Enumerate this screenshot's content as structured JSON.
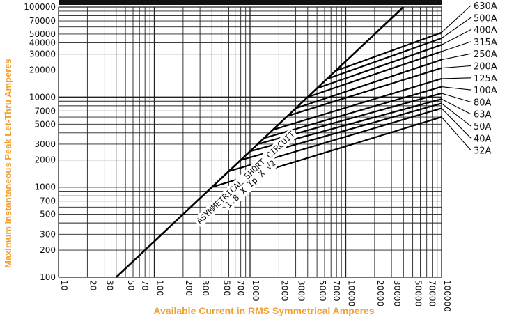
{
  "chart_data": {
    "type": "line",
    "title": "",
    "xlabel": "Available Current in RMS Symmetrical Amperes",
    "ylabel": "Maximum Instantaneous Peak Let-Thru Amperes",
    "xscale": "log",
    "yscale": "log",
    "xlim": [
      10,
      100000
    ],
    "ylim": [
      100,
      100000
    ],
    "grid": true,
    "x_ticks": [
      10,
      20,
      30,
      50,
      70,
      100,
      200,
      300,
      500,
      700,
      1000,
      2000,
      3000,
      5000,
      7000,
      10000,
      20000,
      30000,
      50000,
      70000,
      100000
    ],
    "x_tick_labels": [
      "10",
      "20",
      "30",
      "50",
      "70",
      "100",
      "200",
      "300",
      "500",
      "700",
      "1000",
      "2000",
      "3000",
      "5000",
      "7000",
      "10000",
      "20000",
      "30000",
      "50000",
      "70000",
      "100000"
    ],
    "y_ticks": [
      100,
      200,
      300,
      500,
      700,
      1000,
      2000,
      3000,
      5000,
      7000,
      10000,
      20000,
      30000,
      40000,
      50000,
      70000,
      100000
    ],
    "y_tick_labels": [
      "100",
      "200",
      "300",
      "500",
      "700",
      "1000",
      "2000",
      "3000",
      "5000",
      "7000",
      "10000",
      "20000",
      "30000",
      "40000",
      "50000",
      "70000",
      "100000"
    ],
    "annotation": {
      "line1": "ASYMMETRICAL SHORT CIRCUIT",
      "line2": "1.8 X Ip X √2"
    },
    "asymmetrical_line": {
      "x": [
        40,
        40000
      ],
      "y": [
        100,
        100000
      ]
    },
    "series": [
      {
        "name": "630A",
        "x": [
          7800,
          100000
        ],
        "y": [
          19500,
          52000
        ]
      },
      {
        "name": "500A",
        "x": [
          6500,
          100000
        ],
        "y": [
          16000,
          45000
        ]
      },
      {
        "name": "400A",
        "x": [
          5000,
          100000
        ],
        "y": [
          12500,
          38000
        ]
      },
      {
        "name": "315A",
        "x": [
          4000,
          100000
        ],
        "y": [
          10000,
          32000
        ]
      },
      {
        "name": "250A",
        "x": [
          3000,
          100000
        ],
        "y": [
          7500,
          26000
        ]
      },
      {
        "name": "200A",
        "x": [
          2500,
          100000
        ],
        "y": [
          6200,
          21000
        ]
      },
      {
        "name": "125A",
        "x": [
          1700,
          100000
        ],
        "y": [
          4300,
          16000
        ]
      },
      {
        "name": "100A",
        "x": [
          1400,
          100000
        ],
        "y": [
          3500,
          13000
        ]
      },
      {
        "name": "80A",
        "x": [
          1200,
          100000
        ],
        "y": [
          3000,
          11000
        ]
      },
      {
        "name": "63A",
        "x": [
          1000,
          100000
        ],
        "y": [
          2500,
          9500
        ]
      },
      {
        "name": "50A",
        "x": [
          800,
          100000
        ],
        "y": [
          2000,
          8500
        ]
      },
      {
        "name": "40A",
        "x": [
          600,
          100000
        ],
        "y": [
          1500,
          7500
        ]
      },
      {
        "name": "32A",
        "x": [
          400,
          100000
        ],
        "y": [
          1000,
          6000
        ]
      }
    ]
  }
}
